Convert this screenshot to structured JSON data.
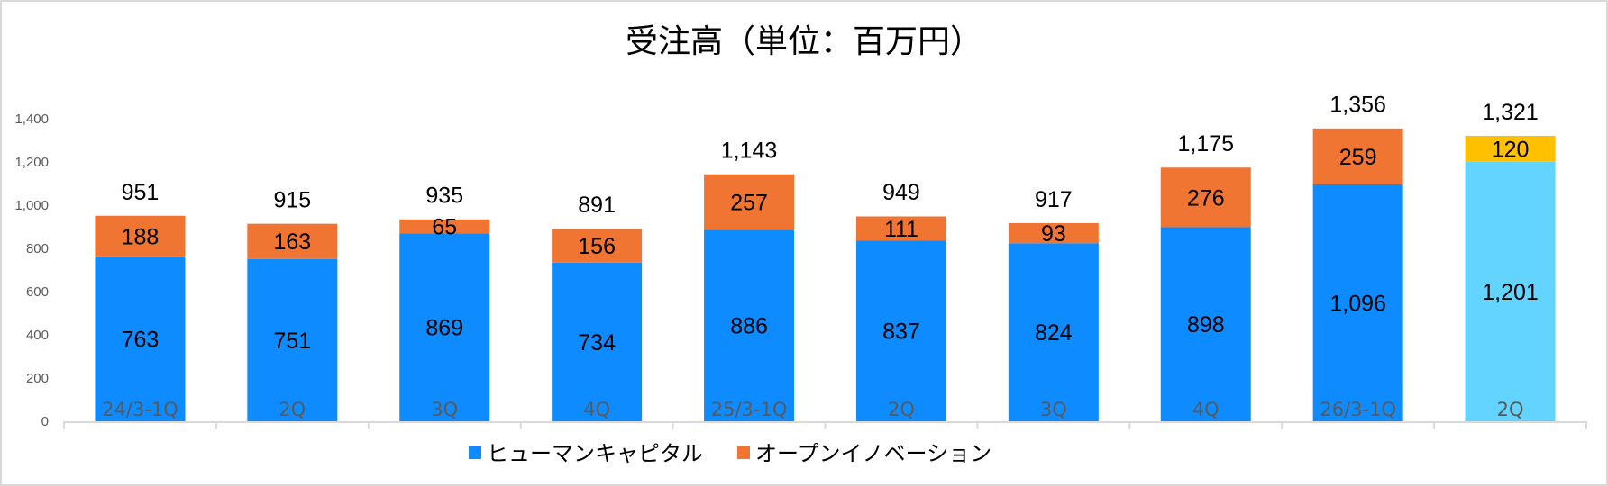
{
  "chart_data": {
    "type": "bar",
    "stacked": true,
    "title": "受注高（単位：百万円）",
    "xlabel": "",
    "ylabel": "",
    "ylim": [
      0,
      1400
    ],
    "yticks": [
      "0",
      "200",
      "400",
      "600",
      "800",
      "1,000",
      "1,200",
      "1,400"
    ],
    "ytick_values": [
      0,
      200,
      400,
      600,
      800,
      1000,
      1200,
      1400
    ],
    "grid": false,
    "legend_position": "bottom",
    "categories": [
      "24/3-1Q",
      "2Q",
      "3Q",
      "4Q",
      "25/3-1Q",
      "2Q",
      "3Q",
      "4Q",
      "26/3-1Q",
      "2Q"
    ],
    "series": [
      {
        "name": "ヒューマンキャピタル",
        "color": "#0e8cff",
        "values": [
          763,
          751,
          869,
          734,
          886,
          837,
          824,
          898,
          1096,
          1201
        ],
        "labels": [
          "763",
          "751",
          "869",
          "734",
          "886",
          "837",
          "824",
          "898",
          "1,096",
          "1,201"
        ]
      },
      {
        "name": "オープンイノベーション",
        "color": "#f07533",
        "values": [
          188,
          163,
          65,
          156,
          257,
          111,
          93,
          276,
          259,
          120
        ],
        "labels": [
          "188",
          "163",
          "65",
          "156",
          "257",
          "111",
          "93",
          "276",
          "259",
          "120"
        ]
      }
    ],
    "highlight": {
      "index": 9,
      "colors": [
        "#63d3ff",
        "#ffc000"
      ]
    },
    "totals": [
      951,
      915,
      935,
      891,
      1143,
      949,
      917,
      1175,
      1356,
      1321
    ],
    "total_labels": [
      "951",
      "915",
      "935",
      "891",
      "1,143",
      "949",
      "917",
      "1,175",
      "1,356",
      "1,321"
    ]
  }
}
